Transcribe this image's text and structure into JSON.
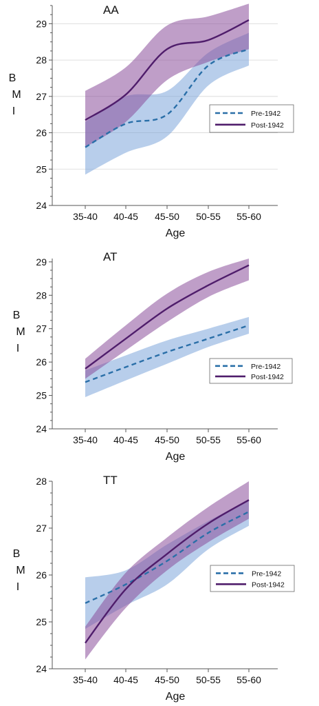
{
  "colors": {
    "pre_line": "#2a6fa8",
    "pre_band": "#7ea6da",
    "post_line": "#4f1d6b",
    "post_band": "#8a4f9a",
    "axis": "#555555",
    "grid": "#d6d6d6",
    "text": "#111111"
  },
  "chart_data": [
    {
      "type": "line",
      "title": "AA",
      "xlabel": "Age",
      "ylabel": "B M I",
      "categories": [
        "35-40",
        "40-45",
        "45-50",
        "50-55",
        "55-60"
      ],
      "ylim": [
        24,
        29.5
      ],
      "yticks": [
        24,
        25,
        26,
        27,
        28,
        29
      ],
      "grid": true,
      "legend": "right",
      "series": [
        {
          "name": "Pre-1942",
          "style": "dashed",
          "values": [
            25.6,
            26.25,
            26.5,
            27.85,
            28.3
          ],
          "lower": [
            24.85,
            25.45,
            25.9,
            27.3,
            27.85
          ],
          "upper": [
            26.3,
            27.0,
            27.15,
            28.2,
            28.75
          ]
        },
        {
          "name": "Post-1942",
          "style": "solid",
          "values": [
            26.35,
            27.05,
            28.3,
            28.55,
            29.1
          ],
          "lower": [
            25.6,
            26.3,
            27.45,
            27.95,
            28.3
          ],
          "upper": [
            27.15,
            27.8,
            28.95,
            29.2,
            29.55
          ]
        }
      ]
    },
    {
      "type": "line",
      "title": "AT",
      "xlabel": "Age",
      "ylabel": "B M I",
      "categories": [
        "35-40",
        "40-45",
        "45-50",
        "50-55",
        "55-60"
      ],
      "ylim": [
        24,
        29.1
      ],
      "yticks": [
        24,
        25,
        26,
        27,
        28,
        29
      ],
      "grid": false,
      "legend": "right",
      "series": [
        {
          "name": "Pre-1942",
          "style": "dashed",
          "values": [
            25.4,
            25.85,
            26.3,
            26.7,
            27.1
          ],
          "lower": [
            24.95,
            25.45,
            25.95,
            26.45,
            26.85
          ],
          "upper": [
            25.75,
            26.2,
            26.65,
            27.0,
            27.35
          ]
        },
        {
          "name": "Post-1942",
          "style": "solid",
          "values": [
            25.8,
            26.7,
            27.6,
            28.3,
            28.9
          ],
          "lower": [
            25.5,
            26.35,
            27.2,
            27.95,
            28.45
          ],
          "upper": [
            26.1,
            27.1,
            28.05,
            28.7,
            29.1
          ]
        }
      ]
    },
    {
      "type": "line",
      "title": "TT",
      "xlabel": "Age",
      "ylabel": "B M I",
      "categories": [
        "35-40",
        "40-45",
        "45-50",
        "50-55",
        "55-60"
      ],
      "ylim": [
        24,
        28
      ],
      "yticks": [
        24,
        25,
        26,
        27,
        28
      ],
      "grid": false,
      "legend": "right",
      "series": [
        {
          "name": "Pre-1942",
          "style": "dashed",
          "values": [
            25.4,
            25.8,
            26.3,
            26.9,
            27.35
          ],
          "lower": [
            24.85,
            25.35,
            25.8,
            26.55,
            27.05
          ],
          "upper": [
            25.95,
            26.1,
            26.65,
            27.15,
            27.6
          ]
        },
        {
          "name": "Post-1942",
          "style": "solid",
          "values": [
            24.55,
            25.7,
            26.45,
            27.1,
            27.6
          ],
          "lower": [
            24.2,
            25.3,
            26.1,
            26.7,
            27.2
          ],
          "upper": [
            24.9,
            26.05,
            26.8,
            27.45,
            28.0
          ]
        }
      ]
    }
  ]
}
